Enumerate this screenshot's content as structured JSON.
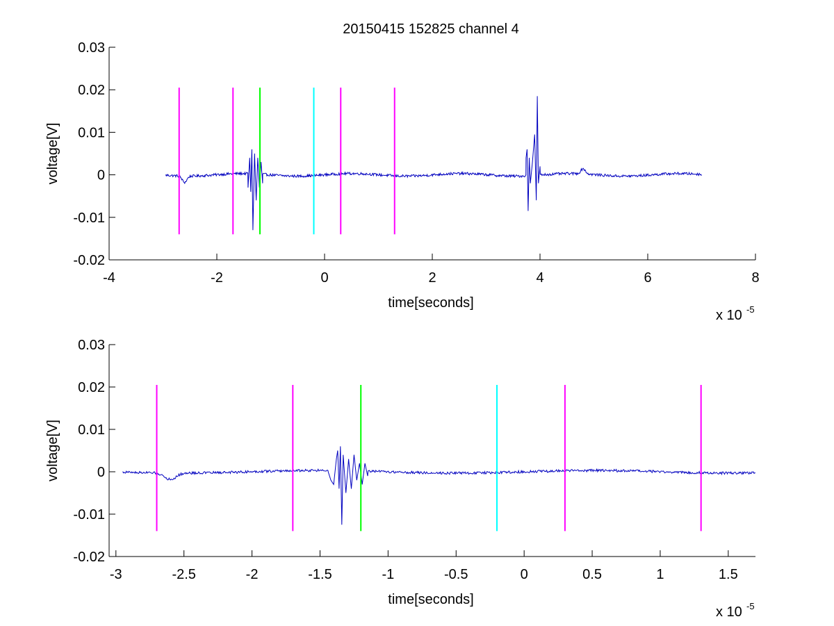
{
  "figure_title": "20150415 152825 channel 4",
  "chart_data": [
    {
      "type": "line",
      "title": "20150415 152825 channel 4",
      "xlabel": "time[seconds]",
      "ylabel": "voltage[V]",
      "x_multiplier_label": "x 10",
      "x_multiplier_exponent": "-5",
      "xlim": [
        -4,
        8
      ],
      "ylim": [
        -0.02,
        0.03
      ],
      "xticks": [
        -4,
        -2,
        0,
        2,
        4,
        6,
        8
      ],
      "xtick_labels": [
        "-4",
        "-2",
        "0",
        "2",
        "4",
        "6",
        "8"
      ],
      "yticks": [
        -0.02,
        -0.01,
        0,
        0.01,
        0.02,
        0.03
      ],
      "ytick_labels": [
        "-0.02",
        "-0.01",
        "0",
        "0.01",
        "0.02",
        "0.03"
      ],
      "grid": false,
      "series": [
        {
          "color": "#0000bf",
          "x_range": [
            -2.95,
            7.0
          ],
          "baseline_noise": 0.0006,
          "bursts": [
            {
              "center": -1.35,
              "width": 0.25,
              "x": [
                -1.42,
                -1.39,
                -1.37,
                -1.35,
                -1.33,
                -1.3,
                -1.27,
                -1.24,
                -1.21,
                -1.18,
                -1.15
              ],
              "y": [
                -0.003,
                0.004,
                -0.004,
                0.006,
                -0.013,
                0.005,
                -0.006,
                0.004,
                -0.003,
                0.003,
                -0.002
              ]
            },
            {
              "center": 3.8,
              "width": 0.3,
              "x": [
                3.74,
                3.76,
                3.78,
                3.8,
                3.82,
                3.86,
                3.9,
                3.93,
                3.95,
                3.97,
                4.0
              ],
              "y": [
                0.004,
                0.006,
                -0.0085,
                0.004,
                -0.002,
                0.003,
                0.0095,
                -0.006,
                0.0185,
                -0.002,
                0.002
              ]
            }
          ],
          "features": [
            {
              "x": -2.6,
              "y": -0.0015
            },
            {
              "x": 4.8,
              "y": 0.0012
            }
          ]
        }
      ],
      "markers": [
        {
          "x": -2.7,
          "color": "#ff00ff",
          "y_range": [
            -0.014,
            0.0205
          ]
        },
        {
          "x": -1.7,
          "color": "#ff00ff",
          "y_range": [
            -0.014,
            0.0205
          ]
        },
        {
          "x": -1.2,
          "color": "#00ff00",
          "y_range": [
            -0.014,
            0.0205
          ]
        },
        {
          "x": -0.2,
          "color": "#00ffff",
          "y_range": [
            -0.014,
            0.0205
          ]
        },
        {
          "x": 0.3,
          "color": "#ff00ff",
          "y_range": [
            -0.014,
            0.0205
          ]
        },
        {
          "x": 1.3,
          "color": "#ff00ff",
          "y_range": [
            -0.014,
            0.0205
          ]
        }
      ]
    },
    {
      "type": "line",
      "title": "",
      "xlabel": "time[seconds]",
      "ylabel": "voltage[V]",
      "x_multiplier_label": "x 10",
      "x_multiplier_exponent": "-5",
      "xlim": [
        -3.05,
        1.7
      ],
      "ylim": [
        -0.02,
        0.03
      ],
      "xticks": [
        -3,
        -2.5,
        -2,
        -1.5,
        -1,
        -0.5,
        0,
        0.5,
        1,
        1.5
      ],
      "xtick_labels": [
        "-3",
        "-2.5",
        "-2",
        "-1.5",
        "-1",
        "-0.5",
        "0",
        "0.5",
        "1",
        "1.5"
      ],
      "yticks": [
        -0.02,
        -0.01,
        0,
        0.01,
        0.02,
        0.03
      ],
      "ytick_labels": [
        "-0.02",
        "-0.01",
        "0",
        "0.01",
        "0.02",
        "0.03"
      ],
      "grid": false,
      "series": [
        {
          "color": "#0000bf",
          "x_range": [
            -2.95,
            1.7
          ],
          "baseline_noise": 0.0006,
          "bursts": [
            {
              "center": -1.35,
              "width": 0.25,
              "x": [
                -1.44,
                -1.42,
                -1.4,
                -1.38,
                -1.37,
                -1.36,
                -1.35,
                -1.34,
                -1.33,
                -1.31,
                -1.29,
                -1.27,
                -1.25,
                -1.23,
                -1.21,
                -1.19,
                -1.17,
                -1.15
              ],
              "y": [
                0.0,
                -0.002,
                -0.003,
                0.003,
                0.005,
                -0.004,
                0.006,
                -0.0125,
                0.004,
                -0.005,
                0.003,
                -0.004,
                0.004,
                -0.002,
                0.002,
                -0.003,
                0.002,
                -0.001
              ]
            }
          ],
          "features": [
            {
              "x": -2.6,
              "y": -0.0015
            }
          ]
        }
      ],
      "markers": [
        {
          "x": -2.7,
          "color": "#ff00ff",
          "y_range": [
            -0.014,
            0.0205
          ]
        },
        {
          "x": -1.7,
          "color": "#ff00ff",
          "y_range": [
            -0.014,
            0.0205
          ]
        },
        {
          "x": -1.2,
          "color": "#00ff00",
          "y_range": [
            -0.014,
            0.0205
          ]
        },
        {
          "x": -0.2,
          "color": "#00ffff",
          "y_range": [
            -0.014,
            0.0205
          ]
        },
        {
          "x": 0.3,
          "color": "#ff00ff",
          "y_range": [
            -0.014,
            0.0205
          ]
        },
        {
          "x": 1.3,
          "color": "#ff00ff",
          "y_range": [
            -0.014,
            0.0205
          ]
        }
      ]
    }
  ]
}
